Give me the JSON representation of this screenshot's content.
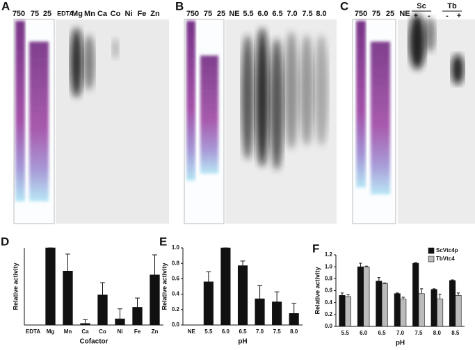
{
  "gels": [
    {
      "panel": "A",
      "lanes": [
        "750",
        "75",
        "25",
        "EDTA",
        "Mg",
        "Mn",
        "Ca",
        "Co",
        "Ni",
        "Fe",
        "Zn"
      ]
    },
    {
      "panel": "B",
      "lanes": [
        "750",
        "75",
        "25",
        "NE",
        "5.5",
        "6.0",
        "6.5",
        "7.0",
        "7.5",
        "8.0"
      ]
    },
    {
      "panel": "C",
      "lanes": [
        "750",
        "75",
        "25",
        "NE"
      ],
      "groups": [
        "Sc",
        "Tb"
      ],
      "signs": [
        "+",
        "-",
        "-",
        "+"
      ]
    }
  ],
  "chart_data": [
    {
      "type": "bar",
      "panel": "D",
      "ylabel": "Relative activity",
      "xlabel": "Cofactor",
      "color": "#111111",
      "categories": [
        "EDTA",
        "Mg",
        "Mn",
        "Ca",
        "Co",
        "Ni",
        "Fe",
        "Zn"
      ],
      "values": [
        0,
        1.0,
        0.7,
        0.02,
        0.39,
        0.08,
        0.23,
        0.65
      ],
      "errors": [
        0,
        0,
        0.22,
        0.05,
        0.16,
        0.13,
        0.12,
        0.26
      ],
      "ylim": [
        0,
        1.0
      ]
    },
    {
      "type": "bar",
      "panel": "E",
      "ylabel": "Relative activity",
      "xlabel": "pH",
      "color": "#111111",
      "categories": [
        "NE",
        "5.5",
        "6.0",
        "6.5",
        "7.0",
        "7.5",
        "8.0"
      ],
      "values": [
        0,
        0.56,
        1.0,
        0.77,
        0.34,
        0.3,
        0.15
      ],
      "errors": [
        0,
        0.13,
        0,
        0.06,
        0.17,
        0.13,
        0.13
      ],
      "ylim": [
        0,
        1.0
      ],
      "yticks": [
        {
          "value": 0,
          "label": "0.0"
        },
        0.2,
        0.4,
        0.6,
        0.8,
        {
          "value": 1,
          "label": "1.0"
        }
      ]
    },
    {
      "type": "bar",
      "panel": "F",
      "ylabel": "Relative activity",
      "xlabel": "pH",
      "legend": "top-right",
      "categories": [
        "5.5",
        "6.0",
        "6.5",
        "7.0",
        "7.5",
        "8.0",
        "8.5"
      ],
      "series": [
        {
          "name": "ScVtc4p",
          "color": "#111111",
          "values": [
            0.52,
            1.0,
            0.76,
            0.55,
            1.06,
            0.62,
            0.77
          ],
          "errors": [
            0.04,
            0.06,
            0.06,
            0.01,
            0.01,
            0.01,
            0.01
          ]
        },
        {
          "name": "TbVtc4",
          "color": "#bbbbbb",
          "values": [
            0.5,
            1.0,
            0.72,
            0.46,
            0.55,
            0.46,
            0.52
          ],
          "errors": [
            0.03,
            0.01,
            0.01,
            0.03,
            0.08,
            0.08,
            0.04
          ]
        }
      ],
      "ylim": [
        0,
        1.2
      ],
      "yticks": [
        {
          "value": 0,
          "label": "0.0"
        },
        0.2,
        0.4,
        0.6,
        0.8,
        {
          "value": 1,
          "label": "1.0"
        },
        1.2
      ]
    }
  ]
}
